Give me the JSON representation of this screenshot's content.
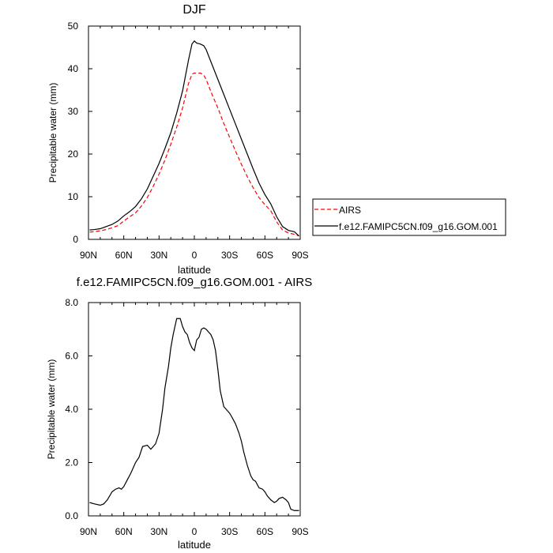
{
  "chart_data": [
    {
      "type": "line",
      "title": "DJF",
      "xlabel": "latitude",
      "ylabel": "Precipitable water (mm)",
      "xlim": [
        90,
        -90
      ],
      "ylim": [
        0,
        50
      ],
      "x_ticks": [
        "90N",
        "60N",
        "30N",
        "0",
        "30S",
        "60S",
        "90S"
      ],
      "x_tick_values": [
        90,
        60,
        30,
        0,
        -30,
        -60,
        -90
      ],
      "y_ticks": [
        "0",
        "10",
        "20",
        "30",
        "40",
        "50"
      ],
      "y_tick_values": [
        0,
        10,
        20,
        30,
        40,
        50
      ],
      "legend_position": "right",
      "series": [
        {
          "name": "AIRS",
          "color": "#ff0000",
          "dash": "dashed",
          "x": [
            89,
            85,
            80,
            75,
            70,
            65,
            60,
            55,
            50,
            45,
            40,
            35,
            30,
            25,
            20,
            15,
            10,
            5,
            2,
            0,
            -2,
            -5,
            -8,
            -10,
            -15,
            -20,
            -25,
            -30,
            -35,
            -40,
            -45,
            -50,
            -55,
            -60,
            -65,
            -70,
            -75,
            -80,
            -85,
            -89
          ],
          "y": [
            1.7,
            1.8,
            2.0,
            2.3,
            2.7,
            3.2,
            4.3,
            5.3,
            6.2,
            7.8,
            9.8,
            12.4,
            15.3,
            18.6,
            22.3,
            26.3,
            30.8,
            36.5,
            38.7,
            39.0,
            38.9,
            39.0,
            38.5,
            37.5,
            34.0,
            30.8,
            27.2,
            23.9,
            20.7,
            17.6,
            14.7,
            12.1,
            9.8,
            8.1,
            6.7,
            4.1,
            2.2,
            1.5,
            1.2,
            0.8
          ]
        },
        {
          "name": "f.e12.FAMIPC5CN.f09_g16.GOM.001",
          "color": "#000000",
          "dash": "solid",
          "x": [
            89,
            85,
            80,
            75,
            70,
            65,
            60,
            55,
            50,
            45,
            40,
            35,
            30,
            25,
            20,
            15,
            10,
            5,
            2,
            0,
            -2,
            -5,
            -8,
            -10,
            -15,
            -20,
            -25,
            -30,
            -35,
            -40,
            -45,
            -50,
            -55,
            -60,
            -65,
            -70,
            -75,
            -80,
            -85,
            -89
          ],
          "y": [
            2.2,
            2.3,
            2.5,
            3.0,
            3.5,
            4.3,
            5.5,
            6.5,
            7.7,
            9.5,
            11.8,
            14.8,
            17.8,
            21.3,
            25.0,
            29.6,
            34.8,
            42.0,
            45.8,
            46.5,
            46.0,
            45.8,
            45.4,
            44.5,
            41.0,
            37.5,
            34.0,
            30.5,
            27.0,
            23.5,
            20.0,
            16.5,
            13.2,
            10.5,
            8.3,
            5.3,
            3.0,
            2.1,
            1.8,
            0.8
          ]
        }
      ]
    },
    {
      "type": "line",
      "title": "f.e12.FAMIPC5CN.f09_g16.GOM.001 - AIRS",
      "xlabel": "latitude",
      "ylabel": "Precipitable water (mm)",
      "xlim": [
        90,
        -90
      ],
      "ylim": [
        0,
        8
      ],
      "x_ticks": [
        "90N",
        "60N",
        "30N",
        "0",
        "30S",
        "60S",
        "90S"
      ],
      "x_tick_values": [
        90,
        60,
        30,
        0,
        -30,
        -60,
        -90
      ],
      "y_ticks": [
        "0.0",
        "2.0",
        "4.0",
        "6.0",
        "8.0"
      ],
      "y_tick_values": [
        0,
        2,
        4,
        6,
        8
      ],
      "series": [
        {
          "color": "#000000",
          "dash": "solid",
          "x": [
            89,
            85,
            80,
            77,
            74,
            70,
            67,
            64,
            62,
            60,
            57,
            54,
            50,
            47,
            44,
            40,
            37,
            35,
            33,
            30,
            27,
            25,
            22,
            20,
            18,
            15,
            12,
            10,
            8,
            6,
            4,
            2,
            0,
            -2,
            -4,
            -6,
            -8,
            -10,
            -12,
            -14,
            -16,
            -18,
            -20,
            -22,
            -25,
            -27,
            -30,
            -32,
            -35,
            -38,
            -40,
            -42,
            -45,
            -48,
            -50,
            -52,
            -55,
            -58,
            -60,
            -62,
            -65,
            -68,
            -70,
            -72,
            -75,
            -78,
            -80,
            -82,
            -85,
            -87,
            -89
          ],
          "y": [
            0.5,
            0.45,
            0.4,
            0.45,
            0.6,
            0.9,
            1.0,
            1.05,
            1.0,
            1.1,
            1.35,
            1.6,
            2.0,
            2.2,
            2.6,
            2.65,
            2.5,
            2.6,
            2.7,
            3.1,
            4.0,
            4.8,
            5.6,
            6.3,
            6.8,
            7.4,
            7.4,
            7.1,
            6.9,
            6.8,
            6.5,
            6.3,
            6.2,
            6.6,
            6.7,
            7.0,
            7.05,
            7.0,
            6.9,
            6.8,
            6.6,
            6.2,
            5.5,
            4.7,
            4.1,
            4.0,
            3.85,
            3.7,
            3.45,
            3.1,
            2.8,
            2.4,
            1.9,
            1.5,
            1.35,
            1.3,
            1.05,
            1.0,
            0.9,
            0.75,
            0.6,
            0.5,
            0.55,
            0.65,
            0.7,
            0.6,
            0.5,
            0.25,
            0.2,
            0.2,
            0.2
          ]
        }
      ]
    }
  ]
}
